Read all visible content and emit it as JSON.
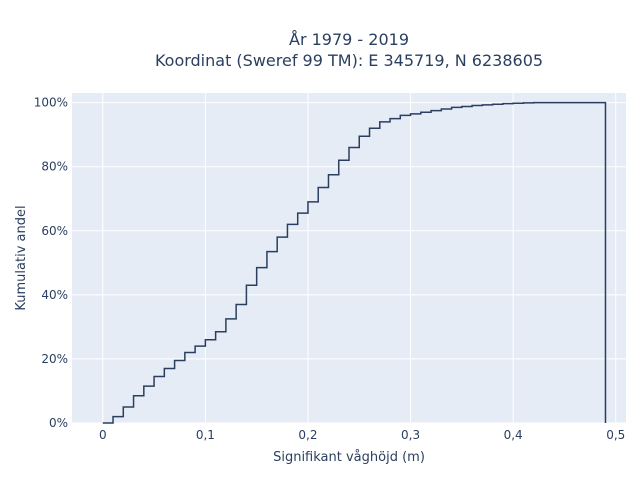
{
  "chart_data": {
    "type": "line",
    "subtype": "ecdf-step",
    "title_line1": "År 1979 - 2019",
    "title_line2": "Koordinat (Sweref 99 TM): E 345719, N 6238605",
    "xlabel": "Signifikant våghöjd (m)",
    "ylabel": "Kumulativ andel",
    "xlim": [
      -0.03,
      0.51
    ],
    "ylim": [
      0,
      1.03
    ],
    "x_ticks": [
      {
        "value": 0,
        "label": "0"
      },
      {
        "value": 0.1,
        "label": "0,1"
      },
      {
        "value": 0.2,
        "label": "0,2"
      },
      {
        "value": 0.3,
        "label": "0,3"
      },
      {
        "value": 0.4,
        "label": "0,4"
      },
      {
        "value": 0.5,
        "label": "0,5"
      }
    ],
    "y_ticks": [
      {
        "value": 0,
        "label": "0%"
      },
      {
        "value": 0.2,
        "label": "20%"
      },
      {
        "value": 0.4,
        "label": "40%"
      },
      {
        "value": 0.6,
        "label": "60%"
      },
      {
        "value": 0.8,
        "label": "80%"
      },
      {
        "value": 1.0,
        "label": "100%"
      }
    ],
    "grid": true,
    "line_color": "#2a3f5f",
    "background_color": "#e5ecf6",
    "x": [
      0,
      0.01,
      0.02,
      0.03,
      0.04,
      0.05,
      0.06,
      0.07,
      0.08,
      0.09,
      0.1,
      0.11,
      0.12,
      0.13,
      0.14,
      0.15,
      0.16,
      0.17,
      0.18,
      0.19,
      0.2,
      0.21,
      0.22,
      0.23,
      0.24,
      0.25,
      0.26,
      0.27,
      0.28,
      0.29,
      0.3,
      0.31,
      0.32,
      0.33,
      0.34,
      0.35,
      0.36,
      0.37,
      0.38,
      0.39,
      0.4,
      0.41,
      0.42,
      0.43,
      0.49
    ],
    "y": [
      0,
      0.02,
      0.05,
      0.085,
      0.115,
      0.145,
      0.17,
      0.195,
      0.22,
      0.24,
      0.26,
      0.285,
      0.325,
      0.37,
      0.43,
      0.485,
      0.535,
      0.58,
      0.62,
      0.655,
      0.69,
      0.735,
      0.775,
      0.82,
      0.86,
      0.895,
      0.92,
      0.94,
      0.95,
      0.96,
      0.965,
      0.97,
      0.975,
      0.98,
      0.985,
      0.988,
      0.991,
      0.993,
      0.995,
      0.997,
      0.998,
      0.999,
      1.0,
      1.0,
      1.0
    ]
  }
}
